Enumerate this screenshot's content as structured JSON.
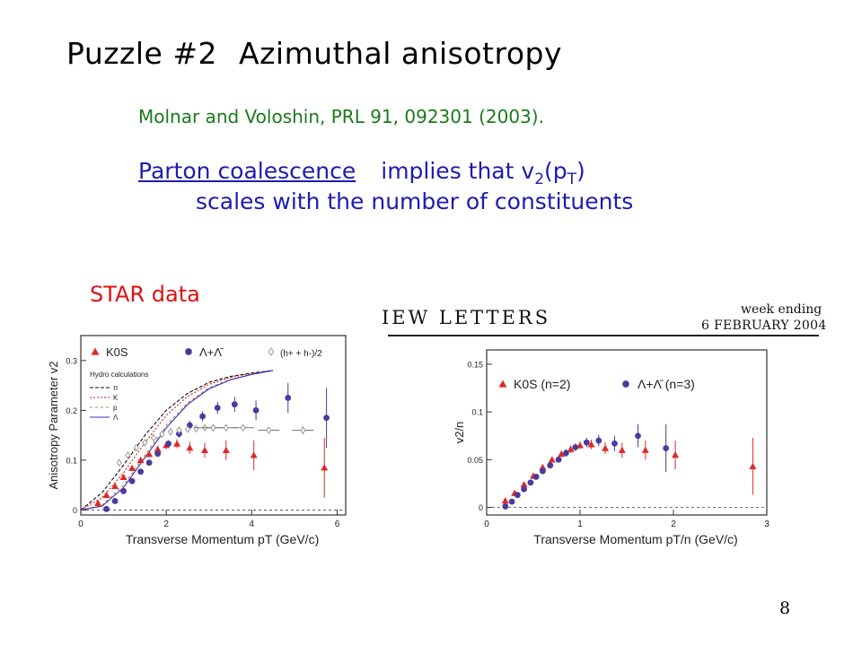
{
  "title": {
    "number": "Puzzle #2",
    "text": "Azimuthal anisotropy"
  },
  "reference": "Molnar and Voloshin, PRL 91, 092301 (2003).",
  "statement": {
    "link": "Parton coalescence",
    "rest_a": "implies that v",
    "sub_2": "2",
    "paren_open": "(p",
    "sub_T": "T",
    "paren_close": ")",
    "line2": "scales with the number of constituents"
  },
  "star_label": "STAR data",
  "journal_header": {
    "left": "IEW LETTERS",
    "right_line1": "week ending",
    "right_line2": "6 FEBRUARY 2004"
  },
  "page_number": "8",
  "colors": {
    "title": "#000000",
    "reference": "#1a7a1a",
    "statement": "#1c1cb0",
    "star": "#e01010",
    "kaon": "#e02828",
    "lambda": "#4a3aa0",
    "hadron": "#999999"
  },
  "chart_data": [
    {
      "type": "scatter",
      "xlabel": "Transverse Momentum pT (GeV/c)",
      "ylabel": "Anisotropy Parameter v2",
      "xlim": [
        0,
        6.2
      ],
      "ylim": [
        -0.01,
        0.35
      ],
      "xticks": [
        "0",
        "2",
        "4",
        "6"
      ],
      "yticks": [
        "0",
        "0.1",
        "0.2",
        "0.3"
      ],
      "legend": [
        "K0S",
        "Λ+Λ̄",
        "(h+ + h-)/2"
      ],
      "legend_placement": "top",
      "hydro_label": "Hydro calculations",
      "hydro_legend": [
        "π",
        "K",
        "p",
        "Λ"
      ],
      "series": [
        {
          "name": "K0S",
          "marker": "triangle",
          "points": [
            [
              0.4,
              0.014
            ],
            [
              0.6,
              0.03
            ],
            [
              0.8,
              0.048
            ],
            [
              1.0,
              0.066
            ],
            [
              1.2,
              0.084
            ],
            [
              1.4,
              0.1
            ],
            [
              1.6,
              0.112
            ],
            [
              1.8,
              0.122
            ],
            [
              2.0,
              0.13
            ],
            [
              2.25,
              0.133
            ],
            [
              2.55,
              0.125
            ],
            [
              2.9,
              0.12
            ],
            [
              3.4,
              0.12
            ],
            [
              4.05,
              0.11
            ],
            [
              5.7,
              0.085
            ]
          ],
          "err": [
            0.003,
            0.003,
            0.003,
            0.004,
            0.004,
            0.005,
            0.006,
            0.007,
            0.008,
            0.009,
            0.012,
            0.015,
            0.02,
            0.03,
            0.06
          ]
        },
        {
          "name": "Λ+Λ̄",
          "marker": "circle",
          "points": [
            [
              0.6,
              0.002
            ],
            [
              0.8,
              0.018
            ],
            [
              1.0,
              0.038
            ],
            [
              1.2,
              0.058
            ],
            [
              1.4,
              0.077
            ],
            [
              1.6,
              0.095
            ],
            [
              1.8,
              0.113
            ],
            [
              2.05,
              0.133
            ],
            [
              2.3,
              0.153
            ],
            [
              2.55,
              0.17
            ],
            [
              2.85,
              0.188
            ],
            [
              3.2,
              0.205
            ],
            [
              3.6,
              0.212
            ],
            [
              4.1,
              0.2
            ],
            [
              4.85,
              0.225
            ],
            [
              5.75,
              0.185
            ]
          ],
          "err": [
            0.004,
            0.004,
            0.004,
            0.005,
            0.005,
            0.006,
            0.006,
            0.007,
            0.008,
            0.009,
            0.01,
            0.012,
            0.015,
            0.02,
            0.03,
            0.06
          ]
        },
        {
          "name": "(h+ + h-)/2",
          "marker": "diamond",
          "points": [
            [
              0.9,
              0.095
            ],
            [
              1.1,
              0.11
            ],
            [
              1.3,
              0.125
            ],
            [
              1.5,
              0.135
            ],
            [
              1.7,
              0.145
            ],
            [
              1.9,
              0.152
            ],
            [
              2.1,
              0.157
            ],
            [
              2.3,
              0.16
            ],
            [
              2.5,
              0.162
            ],
            [
              2.7,
              0.163
            ],
            [
              2.9,
              0.165
            ],
            [
              3.1,
              0.165
            ],
            [
              3.4,
              0.165
            ],
            [
              3.8,
              0.165
            ],
            [
              4.4,
              0.16
            ],
            [
              5.2,
              0.16
            ]
          ],
          "err": [
            0.002,
            0.002,
            0.002,
            0.002,
            0.002,
            0.002,
            0.002,
            0.002,
            0.003,
            0.003,
            0.003,
            0.003,
            0.004,
            0.005,
            0.006,
            0.008
          ]
        }
      ],
      "hydro_curves": [
        {
          "name": "π",
          "points": [
            [
              0,
              0
            ],
            [
              0.5,
              0.035
            ],
            [
              1,
              0.09
            ],
            [
              1.5,
              0.15
            ],
            [
              2,
              0.2
            ],
            [
              2.5,
              0.234
            ],
            [
              3,
              0.256
            ],
            [
              3.5,
              0.268
            ],
            [
              4,
              0.275
            ],
            [
              4.5,
              0.28
            ]
          ]
        },
        {
          "name": "K",
          "points": [
            [
              0,
              0
            ],
            [
              0.5,
              0.025
            ],
            [
              1,
              0.075
            ],
            [
              1.5,
              0.135
            ],
            [
              2,
              0.19
            ],
            [
              2.5,
              0.228
            ],
            [
              3,
              0.252
            ],
            [
              3.5,
              0.266
            ],
            [
              4,
              0.274
            ],
            [
              4.5,
              0.28
            ]
          ]
        },
        {
          "name": "p",
          "points": [
            [
              0,
              0
            ],
            [
              0.5,
              0.01
            ],
            [
              1,
              0.05
            ],
            [
              1.5,
              0.11
            ],
            [
              2,
              0.17
            ],
            [
              2.5,
              0.215
            ],
            [
              3,
              0.245
            ],
            [
              3.5,
              0.262
            ],
            [
              4,
              0.272
            ],
            [
              4.5,
              0.28
            ]
          ]
        },
        {
          "name": "Λ",
          "points": [
            [
              0,
              0
            ],
            [
              0.5,
              0.008
            ],
            [
              1,
              0.045
            ],
            [
              1.5,
              0.105
            ],
            [
              2,
              0.165
            ],
            [
              2.5,
              0.212
            ],
            [
              3,
              0.243
            ],
            [
              3.5,
              0.261
            ],
            [
              4,
              0.272
            ],
            [
              4.5,
              0.28
            ]
          ]
        }
      ]
    },
    {
      "type": "scatter",
      "xlabel": "Transverse Momentum pT/n (GeV/c)",
      "ylabel": "v2/n",
      "xlim": [
        0,
        3
      ],
      "ylim": [
        -0.008,
        0.165
      ],
      "xticks": [
        "0",
        "1",
        "2",
        "3"
      ],
      "yticks": [
        "0",
        "0.05",
        "0.1",
        "0.15"
      ],
      "legend": [
        "K0S (n=2)",
        "Λ+Λ̄ (n=3)"
      ],
      "legend_placement": "top",
      "series": [
        {
          "name": "K0S (n=2)",
          "marker": "triangle",
          "points": [
            [
              0.2,
              0.007
            ],
            [
              0.3,
              0.015
            ],
            [
              0.4,
              0.024
            ],
            [
              0.5,
              0.033
            ],
            [
              0.6,
              0.042
            ],
            [
              0.7,
              0.05
            ],
            [
              0.8,
              0.056
            ],
            [
              0.9,
              0.061
            ],
            [
              1.0,
              0.065
            ],
            [
              1.12,
              0.066
            ],
            [
              1.27,
              0.062
            ],
            [
              1.45,
              0.06
            ],
            [
              1.7,
              0.06
            ],
            [
              2.02,
              0.055
            ],
            [
              2.85,
              0.043
            ]
          ],
          "err": [
            0.002,
            0.002,
            0.002,
            0.002,
            0.002,
            0.003,
            0.003,
            0.004,
            0.004,
            0.005,
            0.006,
            0.008,
            0.01,
            0.015,
            0.03
          ]
        },
        {
          "name": "Λ+Λ̄ (n=3)",
          "marker": "circle",
          "points": [
            [
              0.2,
              0.001
            ],
            [
              0.27,
              0.006
            ],
            [
              0.33,
              0.013
            ],
            [
              0.4,
              0.019
            ],
            [
              0.47,
              0.026
            ],
            [
              0.53,
              0.032
            ],
            [
              0.6,
              0.038
            ],
            [
              0.68,
              0.044
            ],
            [
              0.77,
              0.05
            ],
            [
              0.85,
              0.057
            ],
            [
              0.95,
              0.063
            ],
            [
              1.07,
              0.068
            ],
            [
              1.2,
              0.07
            ],
            [
              1.37,
              0.067
            ],
            [
              1.62,
              0.075
            ],
            [
              1.92,
              0.062
            ]
          ],
          "err": [
            0.002,
            0.002,
            0.002,
            0.002,
            0.002,
            0.002,
            0.003,
            0.003,
            0.003,
            0.004,
            0.004,
            0.005,
            0.006,
            0.008,
            0.012,
            0.025
          ]
        }
      ]
    }
  ]
}
